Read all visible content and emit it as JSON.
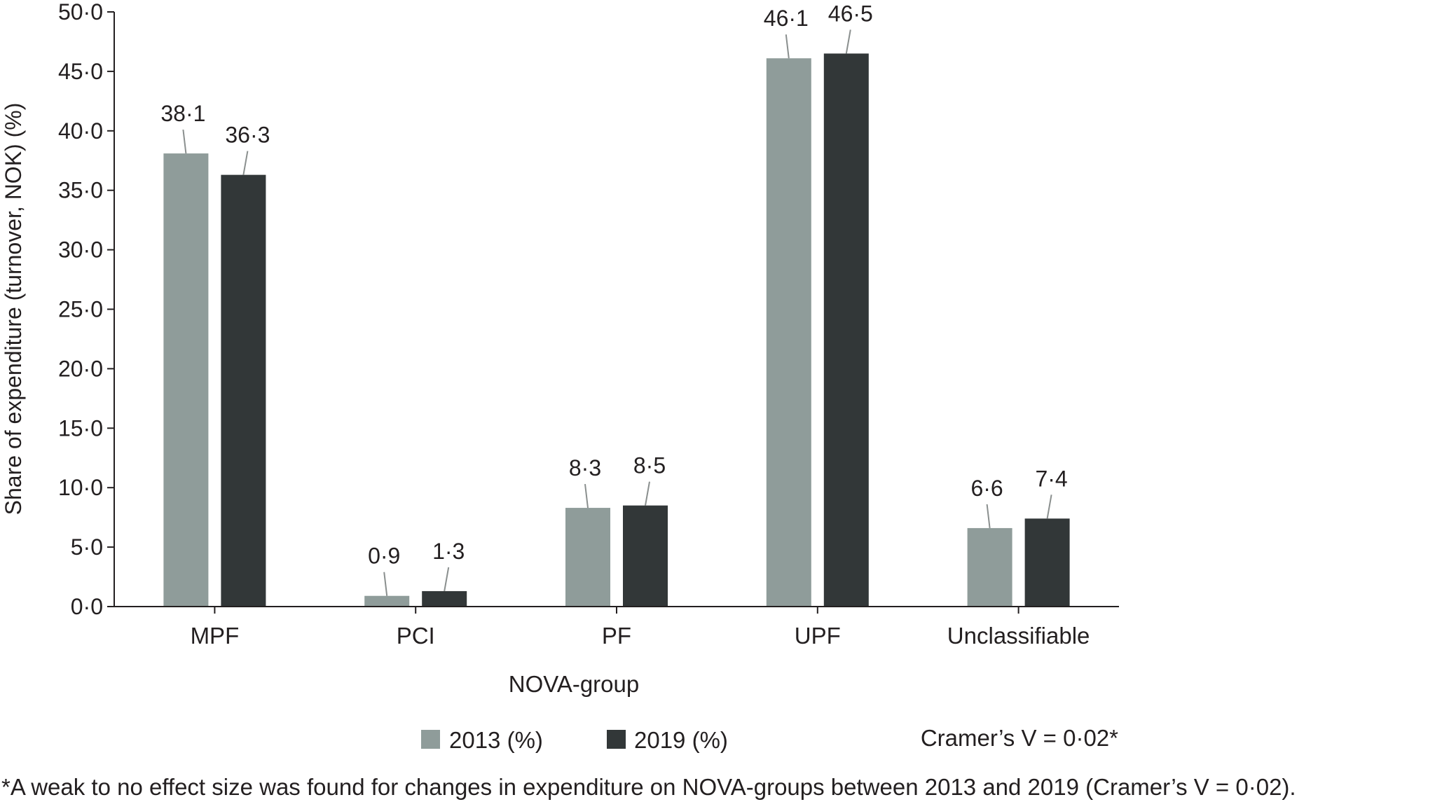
{
  "chart_data": {
    "type": "bar",
    "categories": [
      "MPF",
      "PCI",
      "PF",
      "UPF",
      "Unclassifiable"
    ],
    "series": [
      {
        "name": "2013 (%)",
        "values": [
          38.1,
          0.9,
          8.3,
          46.1,
          6.6
        ],
        "labels": [
          "38·1",
          "0·9",
          "8·3",
          "46·1",
          "6·6"
        ],
        "color": "#8f9c9a"
      },
      {
        "name": "2019 (%)",
        "values": [
          36.3,
          1.3,
          8.5,
          46.5,
          7.4
        ],
        "labels": [
          "36·3",
          "1·3",
          "8·5",
          "46·5",
          "7·4"
        ],
        "color": "#323738"
      }
    ],
    "xlabel": "NOVA-group",
    "ylabel": "Share of expenditure (turnover, NOK) (%)",
    "ylim": [
      0,
      50
    ],
    "yticks": [
      "0·0",
      "5·0",
      "10·0",
      "15·0",
      "20·0",
      "25·0",
      "30·0",
      "35·0",
      "40·0",
      "45·0",
      "50·0"
    ],
    "grid": false,
    "legend_position": "bottom",
    "annotation": "Cramer’s V = 0·02*"
  },
  "footnote": "*A weak to no effect size was found for changes in expenditure on NOVA-groups between 2013 and 2019 (Cramer’s V = 0·02)."
}
